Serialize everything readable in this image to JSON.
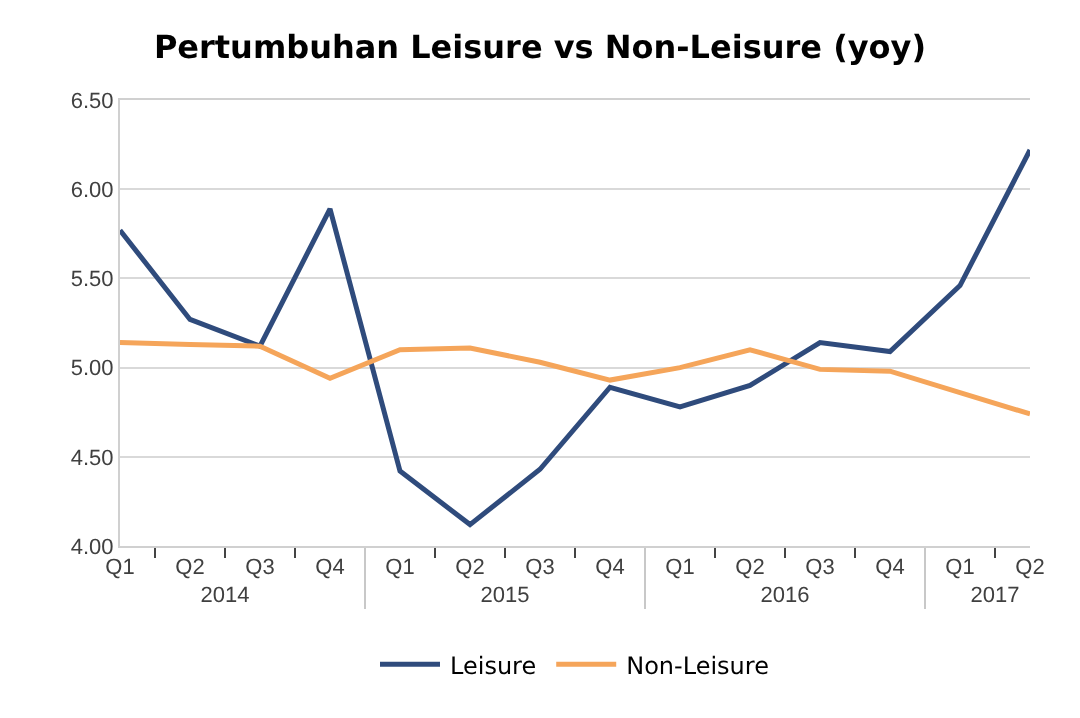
{
  "chart_data": {
    "type": "line",
    "title": "Pertumbuhan Leisure vs Non-Leisure (yoy)",
    "categories": [
      "Q1",
      "Q2",
      "Q3",
      "Q4",
      "Q1",
      "Q2",
      "Q3",
      "Q4",
      "Q1",
      "Q2",
      "Q3",
      "Q4",
      "Q1",
      "Q2"
    ],
    "annotations": [
      "2014",
      "2015",
      "2016",
      "2017"
    ],
    "series": [
      {
        "name": "Leisure",
        "color": "#2f4b7c",
        "values": [
          5.77,
          5.27,
          5.12,
          5.89,
          4.42,
          4.12,
          4.43,
          4.89,
          4.78,
          4.9,
          5.14,
          5.09,
          5.46,
          6.22
        ]
      },
      {
        "name": "Non-Leisure",
        "color": "#f5a55a",
        "values": [
          5.14,
          5.13,
          5.12,
          4.94,
          5.1,
          5.11,
          5.03,
          4.93,
          5.0,
          5.1,
          4.99,
          4.98,
          4.86,
          4.74
        ]
      }
    ],
    "ylim": [
      4.0,
      6.5
    ],
    "yticks": [
      {
        "value": 4,
        "label": "4.00"
      },
      {
        "value": 4.5,
        "label": "4.50"
      },
      {
        "value": 5,
        "label": "5.00"
      },
      {
        "value": 5.5,
        "label": "5.50"
      },
      {
        "value": 6,
        "label": "6.00"
      },
      {
        "value": 6.5,
        "label": "6.50"
      }
    ],
    "grid": "y",
    "legend": "bottom",
    "marker": "none",
    "line_style": "solid"
  }
}
